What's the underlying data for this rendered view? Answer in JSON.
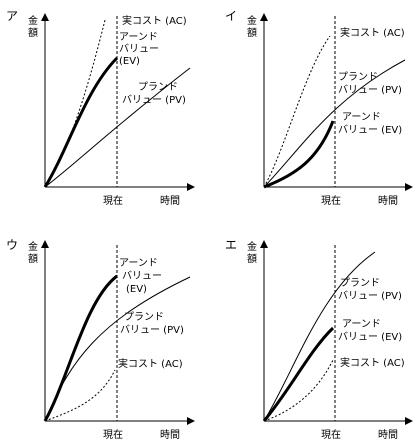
{
  "panels": [
    {
      "letter": "ア",
      "y_axis_label": [
        "金",
        "額"
      ],
      "now_label": "現在",
      "time_label": "時間",
      "ac_label": [
        "実コスト (AC)"
      ],
      "ev_label": [
        "アーンド",
        "バリュー",
        "(EV)"
      ],
      "pv_label": [
        "プランド",
        "バリュー (PV)"
      ]
    },
    {
      "letter": "イ",
      "y_axis_label": [
        "金",
        "額"
      ],
      "now_label": "現在",
      "time_label": "時間",
      "ac_label": [
        "実コスト (AC)"
      ],
      "pv_label": [
        "プランド",
        "バリュー (PV)"
      ],
      "ev_label": [
        "アーンド",
        "バリュー (EV)"
      ]
    },
    {
      "letter": "ウ",
      "y_axis_label": [
        "金",
        "額"
      ],
      "now_label": "現在",
      "time_label": "時間",
      "ev_label": [
        "アーンド",
        "バリュー",
        "(EV)"
      ],
      "pv_label": [
        "プランド",
        "バリュー (PV)"
      ],
      "ac_label": [
        "実コスト (AC)"
      ]
    },
    {
      "letter": "エ",
      "y_axis_label": [
        "金",
        "額"
      ],
      "now_label": "現在",
      "time_label": "時間",
      "pv_label": [
        "プランド",
        "バリュー (PV)"
      ],
      "ev_label": [
        "アーンド",
        "バリュー (EV)"
      ],
      "ac_label": [
        "実コスト (AC)"
      ]
    }
  ]
}
